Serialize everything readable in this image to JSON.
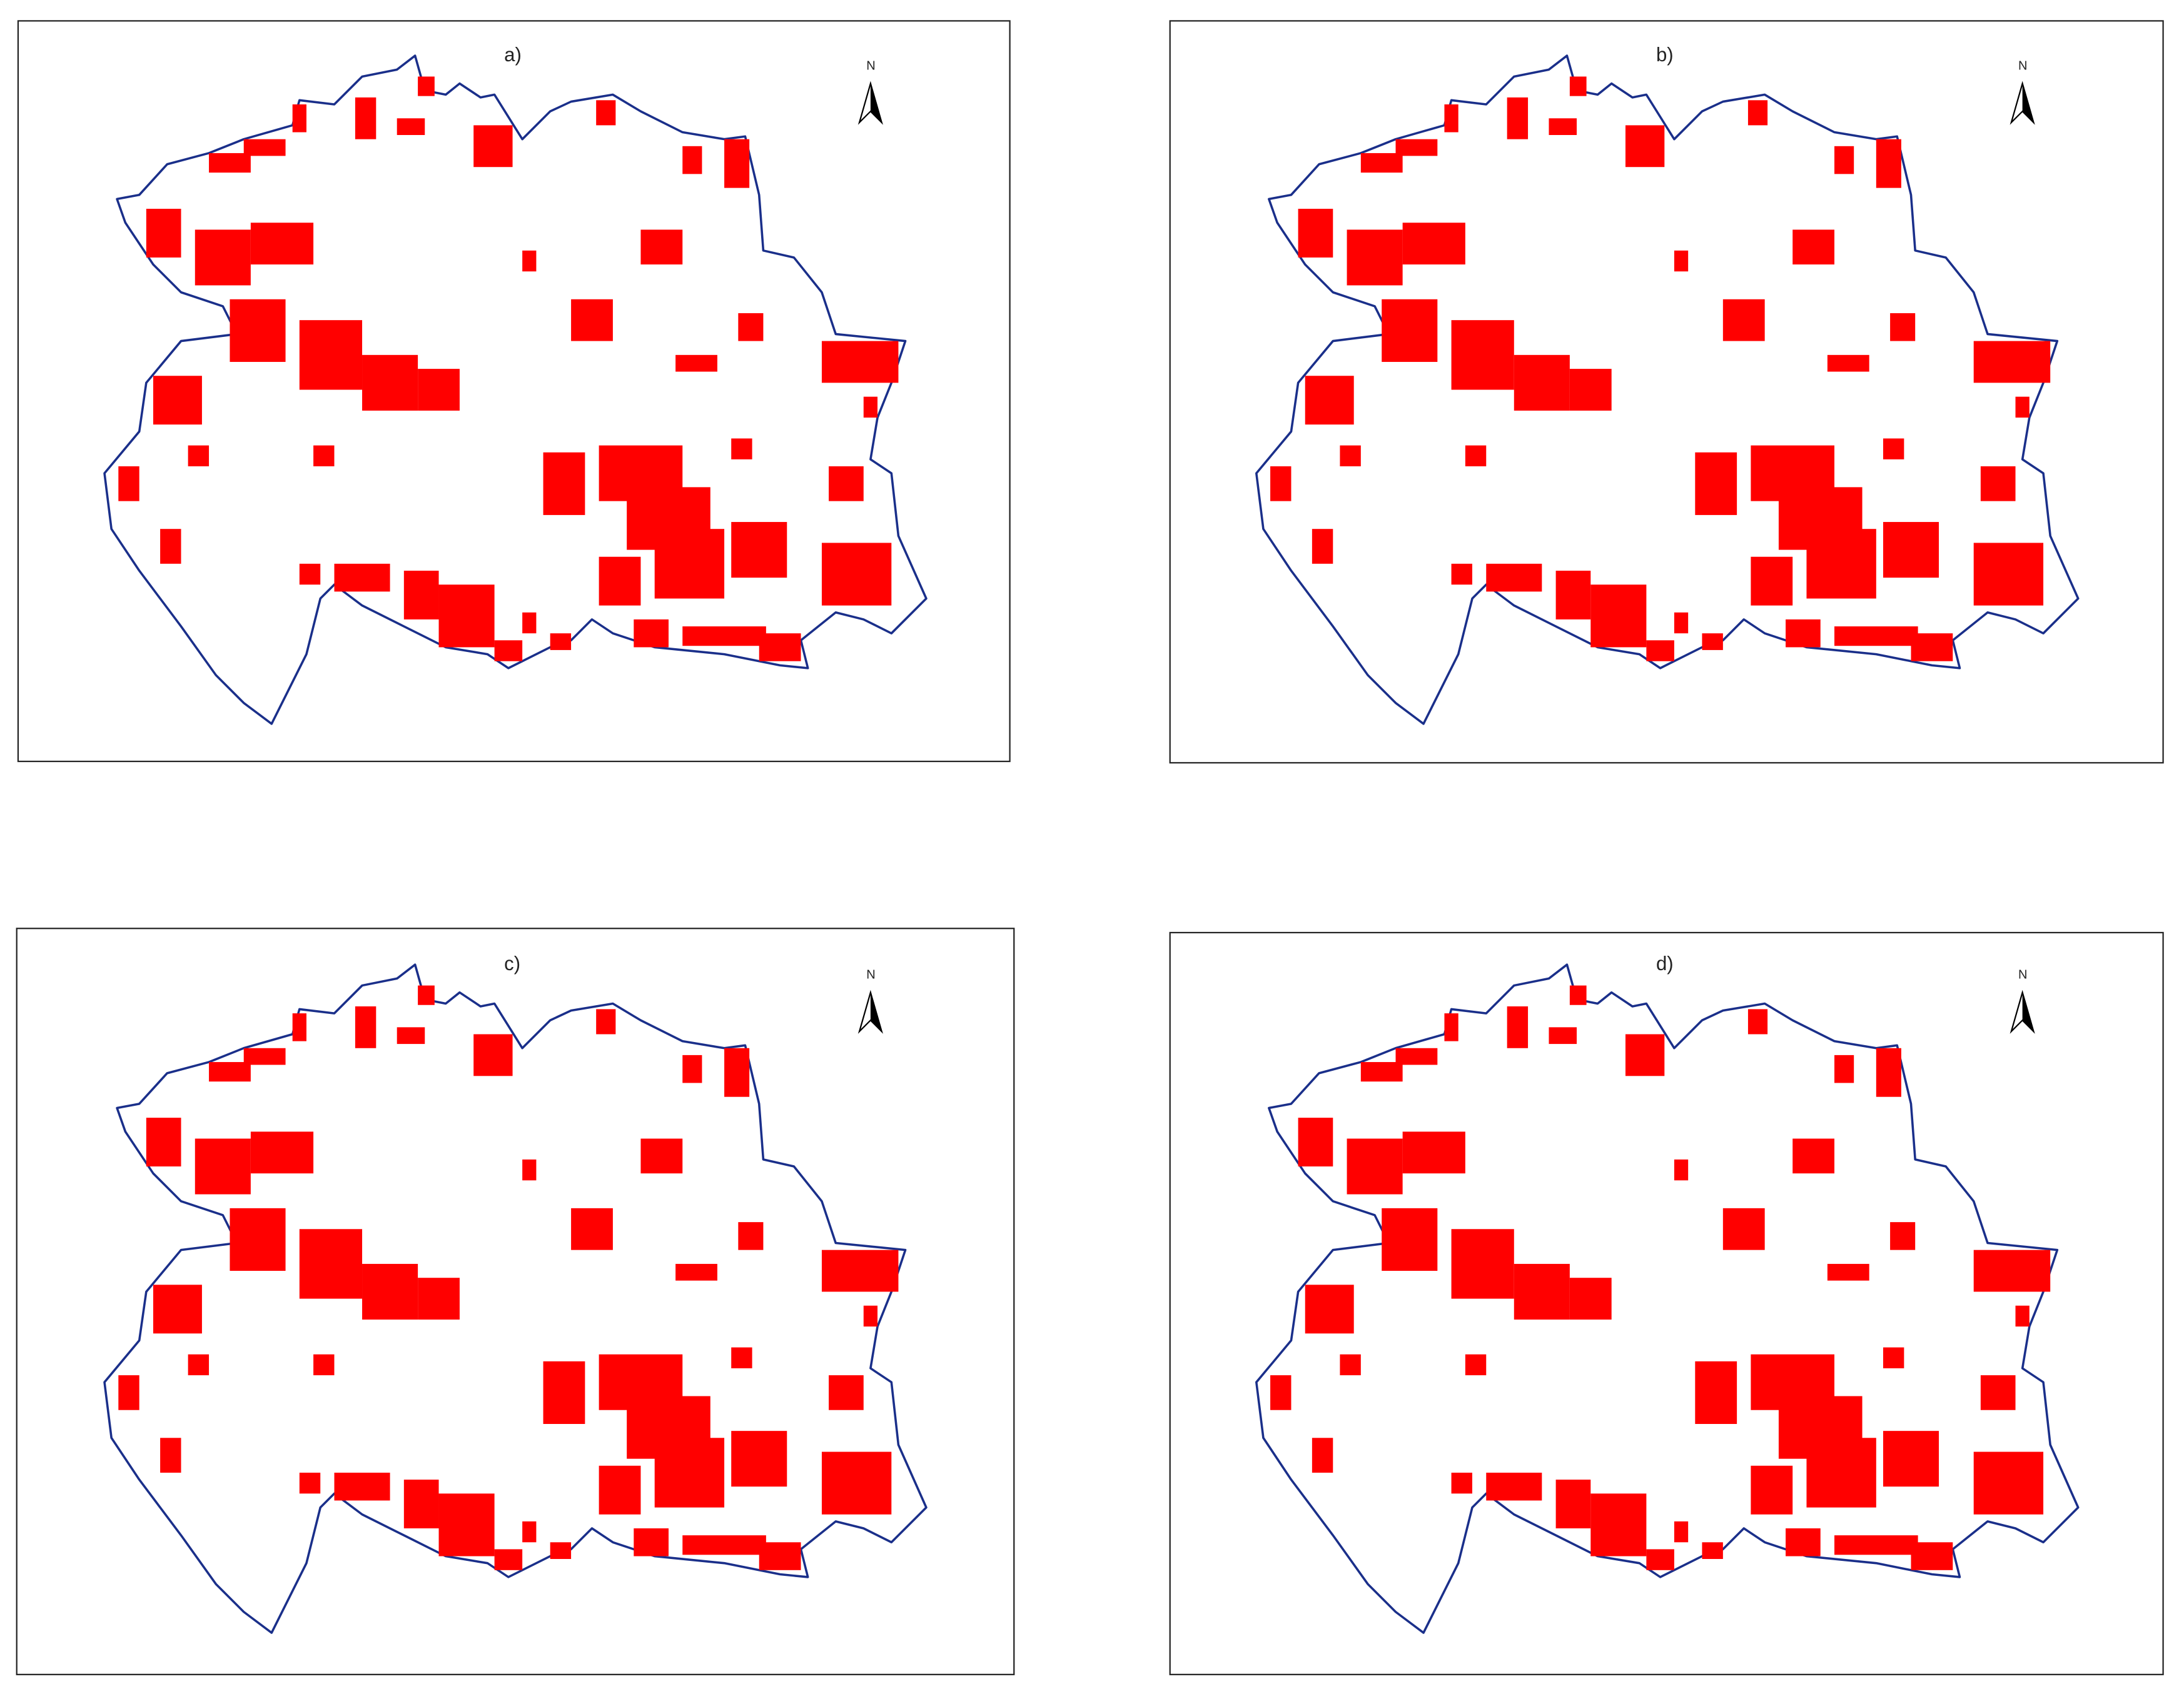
{
  "panels": [
    {
      "label": "a)",
      "north": "N"
    },
    {
      "label": "b)",
      "north": "N"
    },
    {
      "label": "c)",
      "north": "N"
    },
    {
      "label": "d)",
      "north": "N"
    }
  ]
}
